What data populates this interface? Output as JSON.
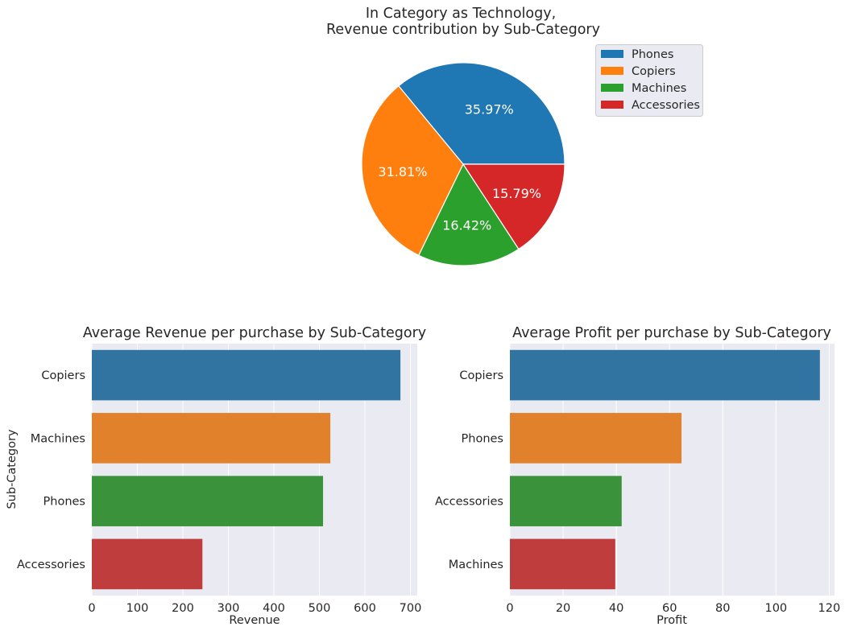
{
  "chart_data": [
    {
      "type": "pie",
      "title_line1": "In Category as Technology,",
      "title_line2": "Revenue contribution by Sub-Category",
      "labels": [
        "Phones",
        "Copiers",
        "Machines",
        "Accessories"
      ],
      "values": [
        35.97,
        31.81,
        16.42,
        15.79
      ],
      "value_labels": [
        "35.97%",
        "31.81%",
        "16.42%",
        "15.79%"
      ],
      "colors": [
        "#1f77b4",
        "#ff7f0e",
        "#2ca02c",
        "#d62728"
      ],
      "legend": "top-right"
    },
    {
      "type": "bar",
      "orientation": "horizontal",
      "title": "Average Revenue per purchase by Sub-Category",
      "categories": [
        "Copiers",
        "Machines",
        "Phones",
        "Accessories"
      ],
      "values": [
        678,
        524,
        508,
        243
      ],
      "colors": [
        "#3274a1",
        "#e1812c",
        "#3a923a",
        "#c03d3e"
      ],
      "xlabel": "Revenue",
      "ylabel": "Sub-Category",
      "xlim": [
        0,
        715
      ],
      "xticks": [
        0,
        100,
        200,
        300,
        400,
        500,
        600,
        700
      ],
      "xtick_labels": [
        "0",
        "100",
        "200",
        "300",
        "400",
        "500",
        "600",
        "700"
      ],
      "grid": true
    },
    {
      "type": "bar",
      "orientation": "horizontal",
      "title": "Average Profit per purchase by Sub-Category",
      "categories": [
        "Copiers",
        "Phones",
        "Accessories",
        "Machines"
      ],
      "values": [
        116.5,
        64.5,
        42,
        39.6
      ],
      "colors": [
        "#3274a1",
        "#e1812c",
        "#3a923a",
        "#c03d3e"
      ],
      "xlabel": "Profit",
      "ylabel": "",
      "xlim": [
        0,
        122
      ],
      "xticks": [
        0,
        20,
        40,
        60,
        80,
        100,
        120
      ],
      "xtick_labels": [
        "0",
        "20",
        "40",
        "60",
        "80",
        "100",
        "120"
      ],
      "grid": true
    }
  ]
}
